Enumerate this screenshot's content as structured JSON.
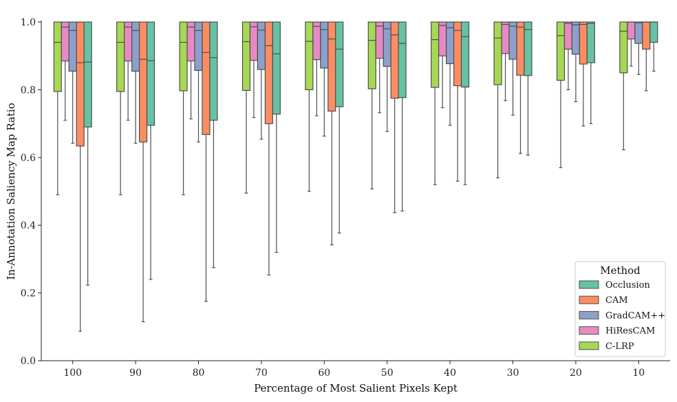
{
  "chart_data": {
    "type": "box",
    "xlabel": "Percentage of Most Salient Pixels Kept",
    "ylabel": "In-Annotation Saliency Map Ratio",
    "ylim": [
      0,
      1
    ],
    "yticks": [
      0.0,
      0.2,
      0.4,
      0.6,
      0.8,
      1.0
    ],
    "categories": [
      "100",
      "90",
      "80",
      "70",
      "60",
      "50",
      "40",
      "30",
      "20",
      "10"
    ],
    "legend": {
      "title": "Method",
      "placement": "bottom-right"
    },
    "series": [
      {
        "name": "C-LRP",
        "color": "#a6d854",
        "boxes": [
          {
            "wlo": 0.49,
            "q1": 0.795,
            "med": 0.94,
            "q3": 1.0,
            "whi": 1.0
          },
          {
            "wlo": 0.49,
            "q1": 0.795,
            "med": 0.94,
            "q3": 1.0,
            "whi": 1.0
          },
          {
            "wlo": 0.49,
            "q1": 0.797,
            "med": 0.94,
            "q3": 1.0,
            "whi": 1.0
          },
          {
            "wlo": 0.495,
            "q1": 0.798,
            "med": 0.942,
            "q3": 1.0,
            "whi": 1.0
          },
          {
            "wlo": 0.5,
            "q1": 0.8,
            "med": 0.943,
            "q3": 1.0,
            "whi": 1.0
          },
          {
            "wlo": 0.507,
            "q1": 0.803,
            "med": 0.946,
            "q3": 1.0,
            "whi": 1.0
          },
          {
            "wlo": 0.52,
            "q1": 0.807,
            "med": 0.948,
            "q3": 1.0,
            "whi": 1.0
          },
          {
            "wlo": 0.54,
            "q1": 0.815,
            "med": 0.953,
            "q3": 1.0,
            "whi": 1.0
          },
          {
            "wlo": 0.57,
            "q1": 0.828,
            "med": 0.96,
            "q3": 1.0,
            "whi": 1.0
          },
          {
            "wlo": 0.623,
            "q1": 0.85,
            "med": 0.973,
            "q3": 1.0,
            "whi": 1.0
          }
        ]
      },
      {
        "name": "HiResCAM",
        "color": "#e78ac3",
        "boxes": [
          {
            "wlo": 0.71,
            "q1": 0.885,
            "med": 0.985,
            "q3": 1.0,
            "whi": 1.0
          },
          {
            "wlo": 0.71,
            "q1": 0.885,
            "med": 0.985,
            "q3": 1.0,
            "whi": 1.0
          },
          {
            "wlo": 0.714,
            "q1": 0.885,
            "med": 0.985,
            "q3": 1.0,
            "whi": 1.0
          },
          {
            "wlo": 0.718,
            "q1": 0.887,
            "med": 0.986,
            "q3": 1.0,
            "whi": 1.0
          },
          {
            "wlo": 0.723,
            "q1": 0.889,
            "med": 0.987,
            "q3": 1.0,
            "whi": 1.0
          },
          {
            "wlo": 0.732,
            "q1": 0.893,
            "med": 0.988,
            "q3": 1.0,
            "whi": 1.0
          },
          {
            "wlo": 0.747,
            "q1": 0.9,
            "med": 0.99,
            "q3": 1.0,
            "whi": 1.0
          },
          {
            "wlo": 0.768,
            "q1": 0.907,
            "med": 0.993,
            "q3": 1.0,
            "whi": 1.0
          },
          {
            "wlo": 0.8,
            "q1": 0.92,
            "med": 0.996,
            "q3": 1.0,
            "whi": 1.0
          },
          {
            "wlo": 0.87,
            "q1": 0.95,
            "med": 1.0,
            "q3": 1.0,
            "whi": 1.0
          }
        ]
      },
      {
        "name": "GradCAM++",
        "color": "#8da0cb",
        "boxes": [
          {
            "wlo": 0.642,
            "q1": 0.855,
            "med": 0.975,
            "q3": 1.0,
            "whi": 1.0
          },
          {
            "wlo": 0.642,
            "q1": 0.855,
            "med": 0.975,
            "q3": 1.0,
            "whi": 1.0
          },
          {
            "wlo": 0.646,
            "q1": 0.857,
            "med": 0.975,
            "q3": 1.0,
            "whi": 1.0
          },
          {
            "wlo": 0.654,
            "q1": 0.86,
            "med": 0.976,
            "q3": 1.0,
            "whi": 1.0
          },
          {
            "wlo": 0.663,
            "q1": 0.864,
            "med": 0.978,
            "q3": 1.0,
            "whi": 1.0
          },
          {
            "wlo": 0.677,
            "q1": 0.869,
            "med": 0.98,
            "q3": 1.0,
            "whi": 1.0
          },
          {
            "wlo": 0.695,
            "q1": 0.877,
            "med": 0.983,
            "q3": 1.0,
            "whi": 1.0
          },
          {
            "wlo": 0.725,
            "q1": 0.89,
            "med": 0.988,
            "q3": 1.0,
            "whi": 1.0
          },
          {
            "wlo": 0.765,
            "q1": 0.905,
            "med": 0.992,
            "q3": 1.0,
            "whi": 1.0
          },
          {
            "wlo": 0.845,
            "q1": 0.937,
            "med": 0.998,
            "q3": 1.0,
            "whi": 1.0
          }
        ]
      },
      {
        "name": "CAM",
        "color": "#fc8d62",
        "boxes": [
          {
            "wlo": 0.087,
            "q1": 0.634,
            "med": 0.88,
            "q3": 1.0,
            "whi": 1.0
          },
          {
            "wlo": 0.115,
            "q1": 0.646,
            "med": 0.89,
            "q3": 1.0,
            "whi": 1.0
          },
          {
            "wlo": 0.175,
            "q1": 0.668,
            "med": 0.91,
            "q3": 1.0,
            "whi": 1.0
          },
          {
            "wlo": 0.253,
            "q1": 0.7,
            "med": 0.93,
            "q3": 1.0,
            "whi": 1.0
          },
          {
            "wlo": 0.342,
            "q1": 0.737,
            "med": 0.95,
            "q3": 1.0,
            "whi": 1.0
          },
          {
            "wlo": 0.437,
            "q1": 0.775,
            "med": 0.962,
            "q3": 1.0,
            "whi": 1.0
          },
          {
            "wlo": 0.53,
            "q1": 0.812,
            "med": 0.975,
            "q3": 1.0,
            "whi": 1.0
          },
          {
            "wlo": 0.612,
            "q1": 0.843,
            "med": 0.985,
            "q3": 1.0,
            "whi": 1.0
          },
          {
            "wlo": 0.693,
            "q1": 0.876,
            "med": 0.993,
            "q3": 1.0,
            "whi": 1.0
          },
          {
            "wlo": 0.797,
            "q1": 0.92,
            "med": 1.0,
            "q3": 1.0,
            "whi": 1.0
          }
        ]
      },
      {
        "name": "Occlusion",
        "color": "#66c2a5",
        "boxes": [
          {
            "wlo": 0.223,
            "q1": 0.69,
            "med": 0.882,
            "q3": 1.0,
            "whi": 1.0
          },
          {
            "wlo": 0.24,
            "q1": 0.695,
            "med": 0.886,
            "q3": 1.0,
            "whi": 1.0
          },
          {
            "wlo": 0.275,
            "q1": 0.71,
            "med": 0.895,
            "q3": 1.0,
            "whi": 1.0
          },
          {
            "wlo": 0.32,
            "q1": 0.728,
            "med": 0.906,
            "q3": 1.0,
            "whi": 1.0
          },
          {
            "wlo": 0.377,
            "q1": 0.75,
            "med": 0.92,
            "q3": 1.0,
            "whi": 1.0
          },
          {
            "wlo": 0.442,
            "q1": 0.777,
            "med": 0.937,
            "q3": 1.0,
            "whi": 1.0
          },
          {
            "wlo": 0.52,
            "q1": 0.808,
            "med": 0.957,
            "q3": 1.0,
            "whi": 1.0
          },
          {
            "wlo": 0.607,
            "q1": 0.842,
            "med": 0.978,
            "q3": 1.0,
            "whi": 1.0
          },
          {
            "wlo": 0.7,
            "q1": 0.88,
            "med": 0.996,
            "q3": 1.0,
            "whi": 1.0
          },
          {
            "wlo": 0.855,
            "q1": 0.94,
            "med": 1.0,
            "q3": 1.0,
            "whi": 1.0
          }
        ]
      }
    ],
    "legend_order": [
      "Occlusion",
      "CAM",
      "GradCAM++",
      "HiResCAM",
      "C-LRP"
    ]
  }
}
